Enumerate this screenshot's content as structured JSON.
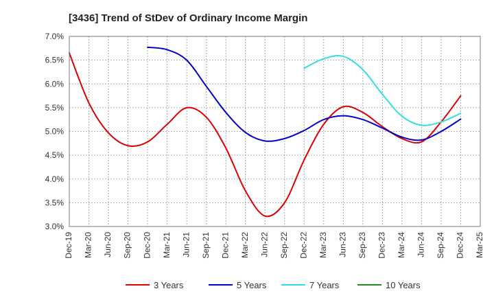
{
  "chart_data": {
    "type": "line",
    "title": "[3436]  Trend of StDev of Ordinary Income Margin",
    "xlabel": "",
    "ylabel": "",
    "ylim": [
      3.0,
      7.0
    ],
    "y_ticks": [
      "3.0%",
      "3.5%",
      "4.0%",
      "4.5%",
      "5.0%",
      "5.5%",
      "6.0%",
      "6.5%",
      "7.0%"
    ],
    "y_tick_values": [
      3.0,
      3.5,
      4.0,
      4.5,
      5.0,
      5.5,
      6.0,
      6.5,
      7.0
    ],
    "categories": [
      "Dec-19",
      "Mar-20",
      "Jun-20",
      "Sep-20",
      "Dec-20",
      "Mar-21",
      "Jun-21",
      "Sep-21",
      "Dec-21",
      "Mar-22",
      "Jun-22",
      "Sep-22",
      "Dec-22",
      "Mar-23",
      "Jun-23",
      "Sep-23",
      "Dec-23",
      "Mar-24",
      "Jun-24",
      "Sep-24",
      "Dec-24",
      "Mar-25"
    ],
    "grid": true,
    "legend_position": "bottom",
    "series": [
      {
        "name": "3 Years",
        "color": "#dd0000",
        "points": [
          [
            "Dec-19",
            6.65
          ],
          [
            "Mar-20",
            5.6
          ],
          [
            "Jun-20",
            4.97
          ],
          [
            "Sep-20",
            4.7
          ],
          [
            "Dec-20",
            4.78
          ],
          [
            "Mar-21",
            5.15
          ],
          [
            "Jun-21",
            5.5
          ],
          [
            "Sep-21",
            5.3
          ],
          [
            "Dec-21",
            4.65
          ],
          [
            "Mar-22",
            3.75
          ],
          [
            "Jun-22",
            3.22
          ],
          [
            "Sep-22",
            3.5
          ],
          [
            "Dec-22",
            4.4
          ],
          [
            "Mar-23",
            5.15
          ],
          [
            "Jun-23",
            5.52
          ],
          [
            "Sep-23",
            5.4
          ],
          [
            "Dec-23",
            5.1
          ],
          [
            "Mar-24",
            4.85
          ],
          [
            "Jun-24",
            4.78
          ],
          [
            "Sep-24",
            5.2
          ],
          [
            "Dec-24",
            5.75
          ]
        ]
      },
      {
        "name": "5 Years",
        "color": "#0000cc",
        "points": [
          [
            "Dec-20",
            6.77
          ],
          [
            "Mar-21",
            6.72
          ],
          [
            "Jun-21",
            6.5
          ],
          [
            "Sep-21",
            5.95
          ],
          [
            "Dec-21",
            5.4
          ],
          [
            "Mar-22",
            4.98
          ],
          [
            "Jun-22",
            4.8
          ],
          [
            "Sep-22",
            4.85
          ],
          [
            "Dec-22",
            5.02
          ],
          [
            "Mar-23",
            5.25
          ],
          [
            "Jun-23",
            5.33
          ],
          [
            "Sep-23",
            5.25
          ],
          [
            "Dec-23",
            5.07
          ],
          [
            "Mar-24",
            4.88
          ],
          [
            "Jun-24",
            4.82
          ],
          [
            "Sep-24",
            5.0
          ],
          [
            "Dec-24",
            5.26
          ]
        ]
      },
      {
        "name": "7 Years",
        "color": "#33dddd",
        "points": [
          [
            "Dec-22",
            6.33
          ],
          [
            "Mar-23",
            6.53
          ],
          [
            "Jun-23",
            6.58
          ],
          [
            "Sep-23",
            6.3
          ],
          [
            "Dec-23",
            5.78
          ],
          [
            "Mar-24",
            5.32
          ],
          [
            "Jun-24",
            5.13
          ],
          [
            "Sep-24",
            5.2
          ],
          [
            "Dec-24",
            5.38
          ]
        ]
      },
      {
        "name": "10 Years",
        "color": "#228822",
        "points": []
      }
    ]
  }
}
